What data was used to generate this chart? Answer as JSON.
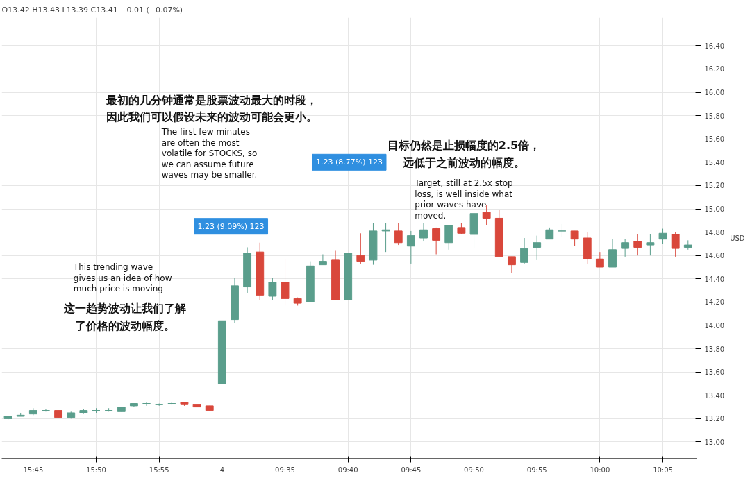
{
  "chart_data": {
    "type": "candlestick",
    "subtitle": "O13.42 H13.43 L13.39 C13.41 −0.01 (−0.07%)",
    "ylabel": "USD",
    "categories": [
      null,
      null,
      "15:45",
      null,
      null,
      null,
      null,
      "15:50",
      null,
      null,
      null,
      null,
      "15:55",
      null,
      null,
      null,
      null,
      "4",
      null,
      null,
      null,
      null,
      "09:35",
      null,
      null,
      null,
      null,
      "09:40",
      null,
      null,
      null,
      null,
      "09:45",
      null,
      null,
      null,
      null,
      "09:50",
      null,
      null,
      null,
      null,
      "09:55",
      null,
      null,
      null,
      null,
      "10:00",
      null,
      null,
      null,
      null,
      "10:05",
      null,
      null
    ],
    "ohlc": [
      [
        13.2,
        13.22,
        13.19,
        13.22
      ],
      [
        13.22,
        13.25,
        13.22,
        13.23
      ],
      [
        13.24,
        13.29,
        13.23,
        13.27
      ],
      [
        13.27,
        13.28,
        13.26,
        13.27
      ],
      [
        13.27,
        13.27,
        13.21,
        13.21
      ],
      [
        13.21,
        13.26,
        13.2,
        13.25
      ],
      [
        13.25,
        13.28,
        13.24,
        13.27
      ],
      [
        13.27,
        13.29,
        13.25,
        13.27
      ],
      [
        13.27,
        13.29,
        13.26,
        13.27
      ],
      [
        13.26,
        13.3,
        13.26,
        13.3
      ],
      [
        13.31,
        13.33,
        13.3,
        13.33
      ],
      [
        13.33,
        13.34,
        13.31,
        13.33
      ],
      [
        13.32,
        13.33,
        13.31,
        13.32
      ],
      [
        13.33,
        13.34,
        13.32,
        13.33
      ],
      [
        13.34,
        13.34,
        13.31,
        13.32
      ],
      [
        13.32,
        13.32,
        13.3,
        13.3
      ],
      [
        13.31,
        13.31,
        13.27,
        13.27
      ],
      [
        13.5,
        14.04,
        13.5,
        14.04
      ],
      [
        14.05,
        14.41,
        14.02,
        14.34
      ],
      [
        14.33,
        14.67,
        14.28,
        14.62
      ],
      [
        14.63,
        14.71,
        14.22,
        14.26
      ],
      [
        14.25,
        14.41,
        14.22,
        14.37
      ],
      [
        14.37,
        14.57,
        14.17,
        14.23
      ],
      [
        14.23,
        14.24,
        14.17,
        14.19
      ],
      [
        14.2,
        14.55,
        14.2,
        14.51
      ],
      [
        14.52,
        14.61,
        14.52,
        14.55
      ],
      [
        14.56,
        14.64,
        14.22,
        14.22
      ],
      [
        14.22,
        14.62,
        14.22,
        14.62
      ],
      [
        14.6,
        14.79,
        14.53,
        14.55
      ],
      [
        14.56,
        14.88,
        14.52,
        14.81
      ],
      [
        14.81,
        14.88,
        14.63,
        14.82
      ],
      [
        14.81,
        14.88,
        14.69,
        14.71
      ],
      [
        14.68,
        14.81,
        14.53,
        14.77
      ],
      [
        14.75,
        14.88,
        14.72,
        14.82
      ],
      [
        14.83,
        14.84,
        14.61,
        14.73
      ],
      [
        14.71,
        14.86,
        14.65,
        14.86
      ],
      [
        14.84,
        14.88,
        14.78,
        14.79
      ],
      [
        14.78,
        14.98,
        14.66,
        14.96
      ],
      [
        14.97,
        15.03,
        14.86,
        14.92
      ],
      [
        14.92,
        14.99,
        14.59,
        14.59
      ],
      [
        14.59,
        14.59,
        14.45,
        14.52
      ],
      [
        14.54,
        14.75,
        14.53,
        14.66
      ],
      [
        14.67,
        14.77,
        14.56,
        14.71
      ],
      [
        14.74,
        14.84,
        14.74,
        14.82
      ],
      [
        14.81,
        14.87,
        14.76,
        14.81
      ],
      [
        14.81,
        14.81,
        14.68,
        14.74
      ],
      [
        14.75,
        14.8,
        14.53,
        14.57
      ],
      [
        14.57,
        14.63,
        14.5,
        14.5
      ],
      [
        14.5,
        14.74,
        14.5,
        14.65
      ],
      [
        14.66,
        14.74,
        14.59,
        14.71
      ],
      [
        14.72,
        14.78,
        14.6,
        14.67
      ],
      [
        14.69,
        14.78,
        14.6,
        14.71
      ],
      [
        14.74,
        14.83,
        14.7,
        14.79
      ],
      [
        14.78,
        14.8,
        14.59,
        14.66
      ],
      [
        14.67,
        14.73,
        14.65,
        14.69
      ]
    ],
    "colors": [
      "#5a9e8c",
      "#5a9e8c",
      "#5a9e8c",
      "#5a9e8c",
      "#d9473b",
      "#5a9e8c",
      "#5a9e8c",
      "#5a9e8c",
      "#5a9e8c",
      "#5a9e8c",
      "#5a9e8c",
      "#5a9e8c",
      "#5a9e8c",
      "#5a9e8c",
      "#d9473b",
      "#d9473b",
      "#d9473b",
      "#5a9e8c",
      "#5a9e8c",
      "#5a9e8c",
      "#d9473b",
      "#5a9e8c",
      "#d9473b",
      "#d9473b",
      "#5a9e8c",
      "#5a9e8c",
      "#d9473b",
      "#5a9e8c",
      "#d9473b",
      "#5a9e8c",
      "#5a9e8c",
      "#d9473b",
      "#5a9e8c",
      "#5a9e8c",
      "#d9473b",
      "#5a9e8c",
      "#d9473b",
      "#5a9e8c",
      "#d9473b",
      "#d9473b",
      "#d9473b",
      "#5a9e8c",
      "#5a9e8c",
      "#5a9e8c",
      "#5a9e8c",
      "#d9473b",
      "#d9473b",
      "#d9473b",
      "#5a9e8c",
      "#5a9e8c",
      "#d9473b",
      "#5a9e8c",
      "#5a9e8c",
      "#d9473b",
      "#5a9e8c"
    ],
    "ylim": [
      12.86,
      16.64
    ],
    "yticks": [
      {
        "value": 13,
        "label": "13.00"
      },
      {
        "value": 13.2,
        "label": "13.20"
      },
      {
        "value": 13.4,
        "label": "13.40"
      },
      {
        "value": 13.6,
        "label": "13.60"
      },
      {
        "value": 13.8,
        "label": "13.80"
      },
      {
        "value": 14,
        "label": "14.00"
      },
      {
        "value": 14.2,
        "label": "14.20"
      },
      {
        "value": 14.4,
        "label": "14.40"
      },
      {
        "value": 14.6,
        "label": "14.60"
      },
      {
        "value": 14.8,
        "label": "14.80"
      },
      {
        "value": 15,
        "label": "15.00"
      },
      {
        "value": 15.2,
        "label": "15.20"
      },
      {
        "value": 15.4,
        "label": "15.40"
      },
      {
        "value": 15.6,
        "label": "15.60"
      },
      {
        "value": 15.8,
        "label": "15.80"
      },
      {
        "value": 16,
        "label": "16.00"
      },
      {
        "value": 16.2,
        "label": "16.20"
      },
      {
        "value": 16.4,
        "label": "16.40"
      }
    ],
    "grid": true,
    "annotations": [
      "最初的几分钟通常是股票波动最大的时段，因此我们可以假设未来的波动可能会更小。",
      "The first few minutes\nare often the most\nvolatile for STOCKS, so\nwe can assume future\nwaves may be smaller.",
      "1.23 (8.77%) 123",
      "目标仍然是止损幅度的2.5倍，远低于之前波动的幅度。",
      "Target, still at 2.5x stop\nloss, is well inside what\nprior waves have\nmoved.",
      "1.23 (9.09%) 123",
      "This trending wave\ngives us an idea of how\nmuch price is moving",
      "这一趋势波动让我们了解了价格的波动幅度。"
    ]
  }
}
